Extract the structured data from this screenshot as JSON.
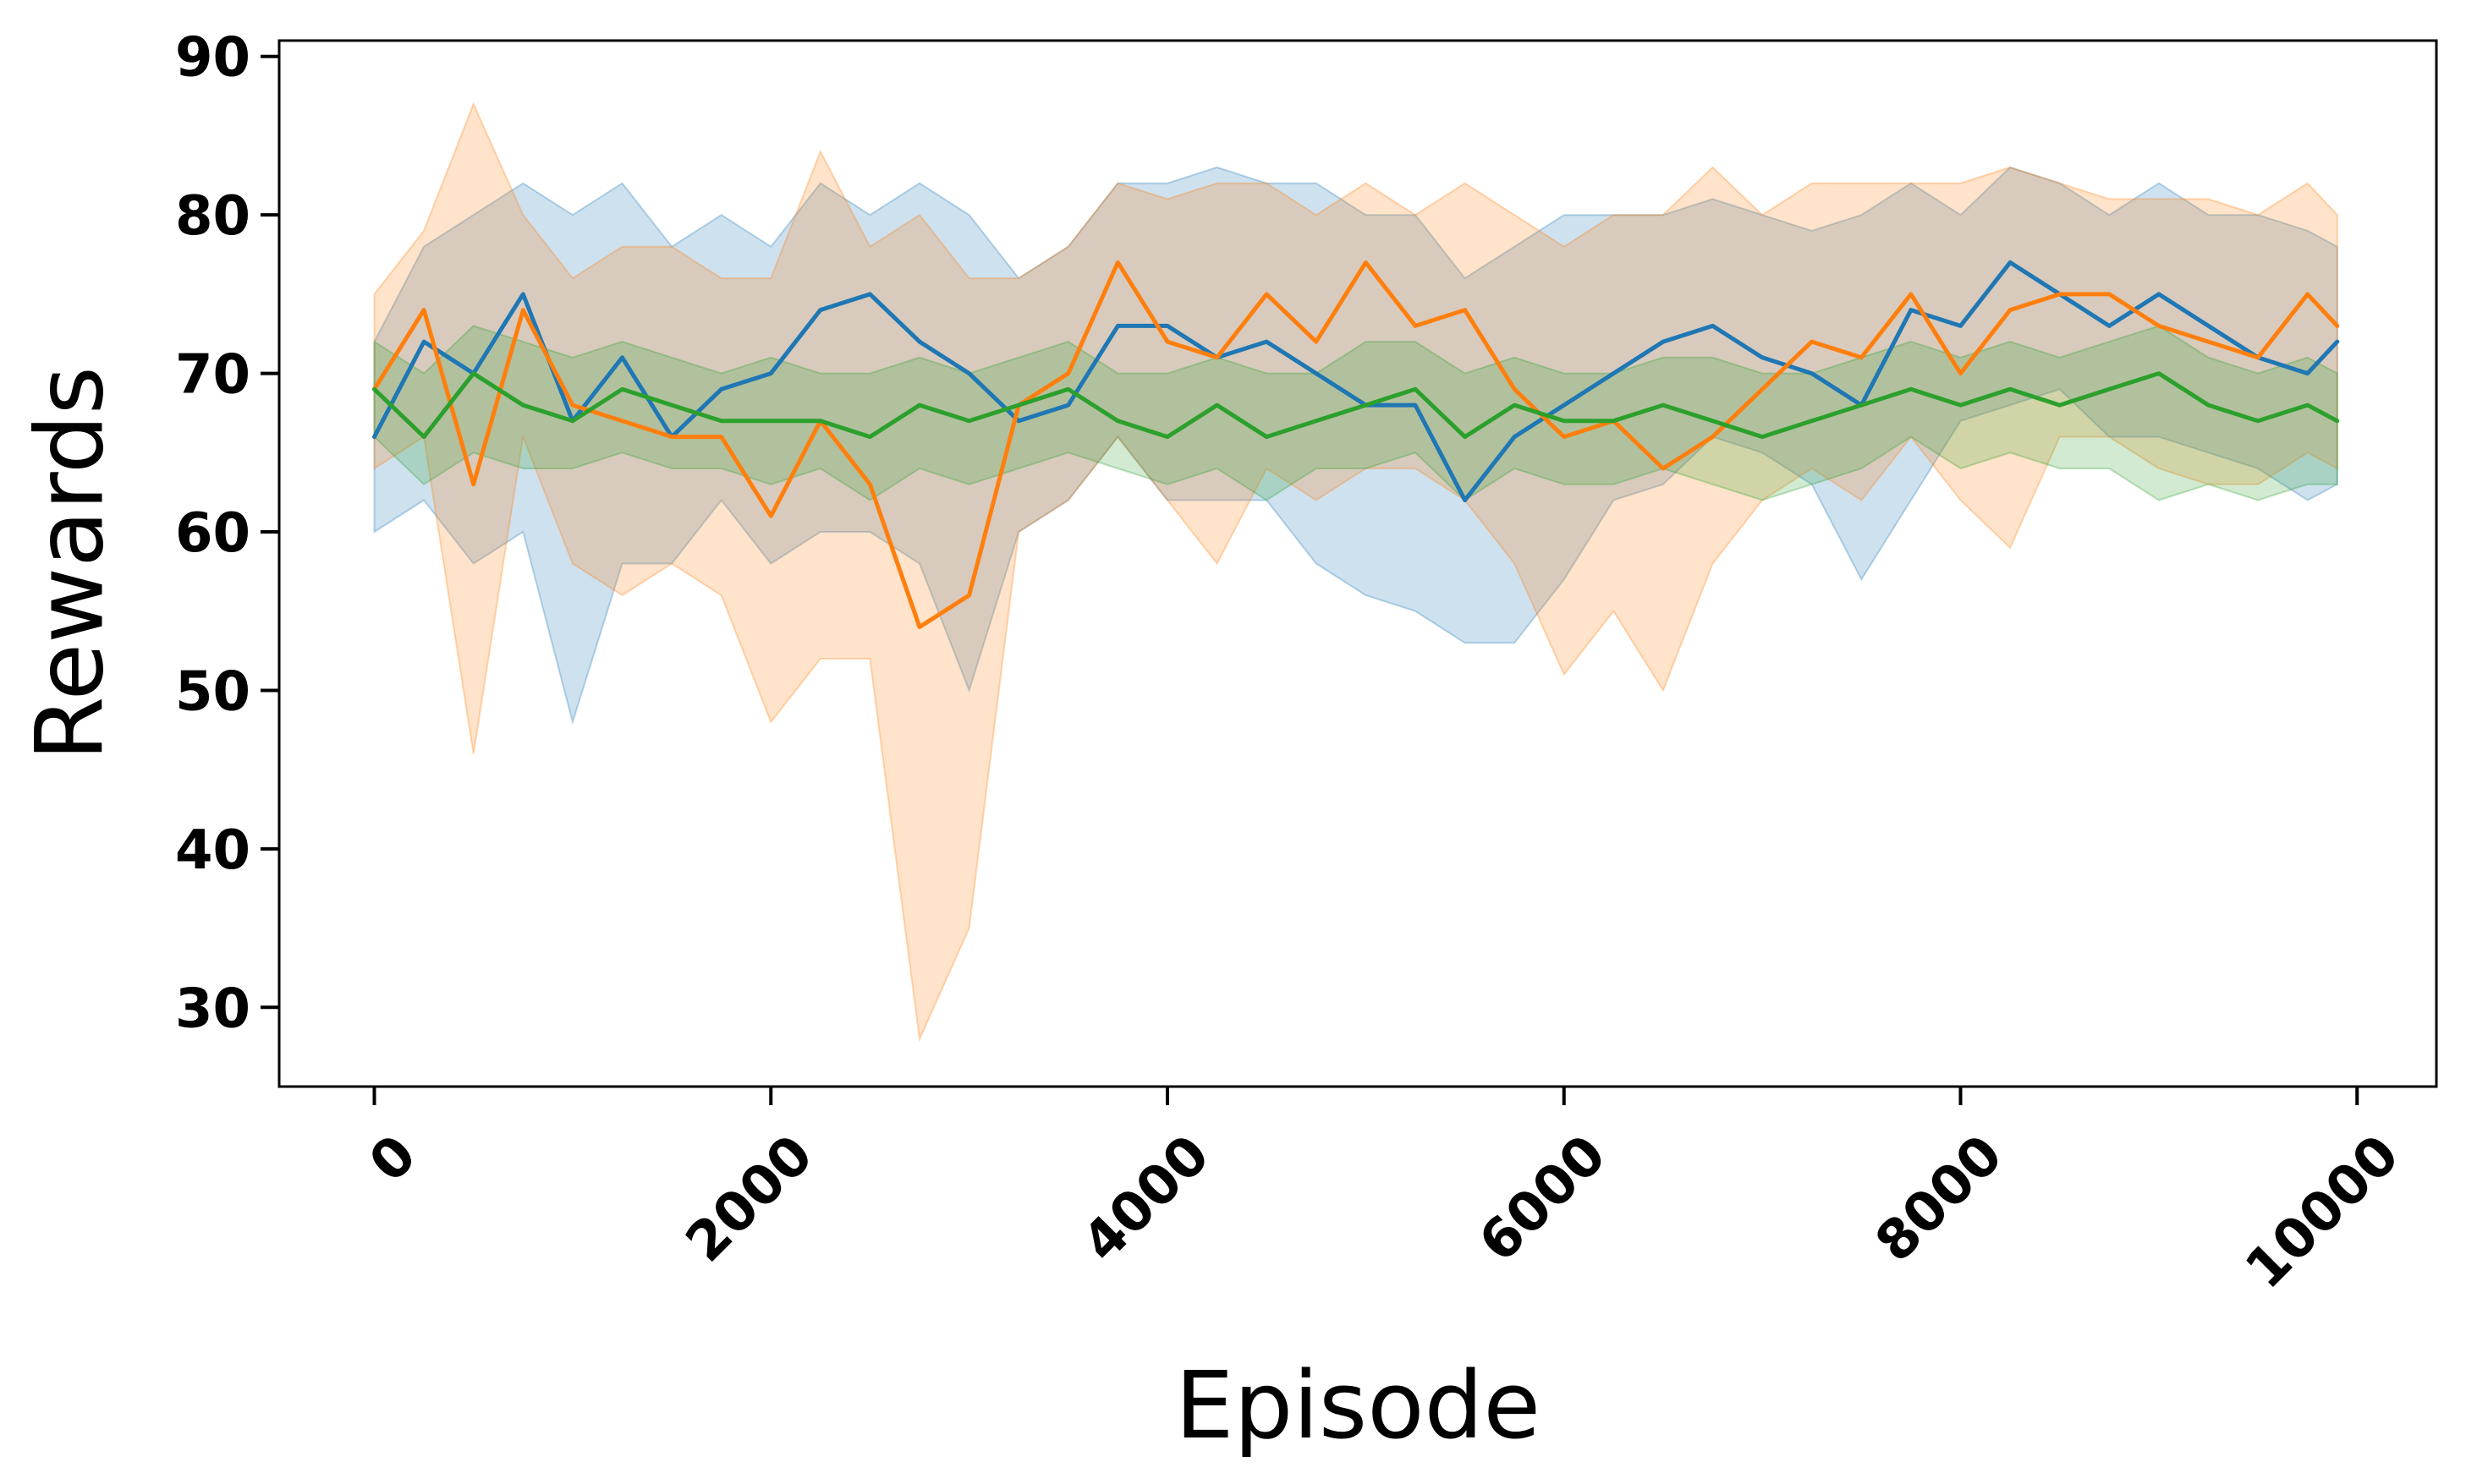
{
  "chart_data": {
    "type": "line",
    "title": "",
    "xlabel": "Episode",
    "ylabel": "Rewards",
    "xlim": [
      -480,
      10400
    ],
    "ylim": [
      25,
      91
    ],
    "x_ticks": [
      0,
      2000,
      4000,
      6000,
      8000,
      10000
    ],
    "x_tick_labels": [
      "0",
      "2000",
      "4000",
      "6000",
      "8000",
      "10000"
    ],
    "y_ticks": [
      30,
      40,
      50,
      60,
      70,
      80,
      90
    ],
    "y_tick_labels": [
      "30",
      "40",
      "50",
      "60",
      "70",
      "80",
      "90"
    ],
    "grid": false,
    "legend": "none",
    "x": [
      0,
      250,
      500,
      750,
      1000,
      1250,
      1500,
      1750,
      2000,
      2250,
      2500,
      2750,
      3000,
      3250,
      3500,
      3750,
      4000,
      4250,
      4500,
      4750,
      5000,
      5250,
      5500,
      5750,
      6000,
      6250,
      6500,
      6750,
      7000,
      7250,
      7500,
      7750,
      8000,
      8250,
      8500,
      8750,
      9000,
      9250,
      9500,
      9750,
      9900
    ],
    "series": [
      {
        "color": "#1f77b4",
        "mean": [
          66,
          72,
          70,
          75,
          67,
          71,
          66,
          69,
          70,
          74,
          75,
          72,
          70,
          67,
          68,
          73,
          73,
          71,
          72,
          70,
          68,
          68,
          62,
          66,
          68,
          70,
          72,
          73,
          71,
          70,
          68,
          74,
          73,
          77,
          75,
          73,
          75,
          73,
          71,
          70,
          72
        ],
        "lower": [
          60,
          62,
          58,
          60,
          48,
          58,
          58,
          62,
          58,
          60,
          60,
          58,
          50,
          60,
          62,
          66,
          62,
          62,
          62,
          58,
          56,
          55,
          53,
          53,
          57,
          62,
          63,
          66,
          65,
          63,
          57,
          62,
          67,
          68,
          69,
          66,
          66,
          65,
          64,
          62,
          63
        ],
        "upper": [
          72,
          78,
          80,
          82,
          80,
          82,
          78,
          80,
          78,
          82,
          80,
          82,
          80,
          76,
          78,
          82,
          82,
          83,
          82,
          82,
          80,
          80,
          76,
          78,
          80,
          80,
          80,
          81,
          80,
          79,
          80,
          82,
          80,
          83,
          82,
          80,
          82,
          80,
          80,
          79,
          78
        ]
      },
      {
        "color": "#ff7f0e",
        "mean": [
          69,
          74,
          63,
          74,
          68,
          67,
          66,
          66,
          61,
          67,
          63,
          54,
          56,
          68,
          70,
          77,
          72,
          71,
          75,
          72,
          77,
          73,
          74,
          69,
          66,
          67,
          64,
          66,
          69,
          72,
          71,
          75,
          70,
          74,
          75,
          75,
          73,
          72,
          71,
          75,
          73
        ],
        "lower": [
          64,
          66,
          46,
          66,
          58,
          56,
          58,
          56,
          48,
          52,
          52,
          28,
          35,
          60,
          62,
          66,
          62,
          58,
          64,
          62,
          64,
          64,
          62,
          58,
          51,
          55,
          50,
          58,
          62,
          64,
          62,
          66,
          62,
          59,
          66,
          66,
          64,
          63,
          63,
          65,
          64
        ],
        "upper": [
          75,
          79,
          87,
          80,
          76,
          78,
          78,
          76,
          76,
          84,
          78,
          80,
          76,
          76,
          78,
          82,
          81,
          82,
          82,
          80,
          82,
          80,
          82,
          80,
          78,
          80,
          80,
          83,
          80,
          82,
          82,
          82,
          82,
          83,
          82,
          81,
          81,
          81,
          80,
          82,
          80
        ]
      },
      {
        "color": "#2ca02c",
        "mean": [
          69,
          66,
          70,
          68,
          67,
          69,
          68,
          67,
          67,
          67,
          66,
          68,
          67,
          68,
          69,
          67,
          66,
          68,
          66,
          67,
          68,
          69,
          66,
          68,
          67,
          67,
          68,
          67,
          66,
          67,
          68,
          69,
          68,
          69,
          68,
          69,
          70,
          68,
          67,
          68,
          67
        ],
        "lower": [
          66,
          63,
          65,
          64,
          64,
          65,
          64,
          64,
          63,
          64,
          62,
          64,
          63,
          64,
          65,
          64,
          63,
          64,
          62,
          64,
          64,
          65,
          62,
          64,
          63,
          63,
          64,
          63,
          62,
          63,
          64,
          66,
          64,
          65,
          64,
          64,
          62,
          63,
          62,
          63,
          63
        ],
        "upper": [
          72,
          70,
          73,
          72,
          71,
          72,
          71,
          70,
          71,
          70,
          70,
          71,
          70,
          71,
          72,
          70,
          70,
          71,
          70,
          70,
          72,
          72,
          70,
          71,
          70,
          70,
          71,
          71,
          70,
          70,
          71,
          72,
          71,
          72,
          71,
          72,
          73,
          71,
          70,
          71,
          70
        ]
      }
    ]
  }
}
